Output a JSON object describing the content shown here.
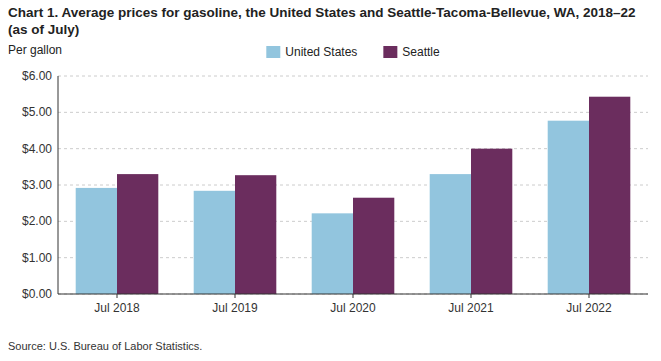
{
  "chart_data": {
    "type": "bar",
    "title": "Chart 1. Average prices for gasoline, the United States and Seattle-Tacoma-Bellevue, WA, 2018–22 (as of July)",
    "y_label": "Per gallon",
    "source": "Source: U.S. Bureau of Labor Statistics.",
    "categories": [
      "Jul 2018",
      "Jul 2019",
      "Jul 2020",
      "Jul 2021",
      "Jul 2022"
    ],
    "series": [
      {
        "name": "United States",
        "color": "#92C5DE",
        "values": [
          2.92,
          2.84,
          2.22,
          3.3,
          4.77
        ]
      },
      {
        "name": "Seattle",
        "color": "#6B2D5E",
        "values": [
          3.3,
          3.27,
          2.65,
          4.0,
          5.43
        ]
      }
    ],
    "ylim": [
      0,
      6.0
    ],
    "yticks": [
      {
        "value": 0.0,
        "label": "$0.00"
      },
      {
        "value": 1.0,
        "label": "$1.00"
      },
      {
        "value": 2.0,
        "label": "$2.00"
      },
      {
        "value": 3.0,
        "label": "$3.00"
      },
      {
        "value": 4.0,
        "label": "$4.00"
      },
      {
        "value": 5.0,
        "label": "$5.00"
      },
      {
        "value": 6.0,
        "label": "$6.00"
      }
    ],
    "grid": true,
    "legend": "top"
  }
}
